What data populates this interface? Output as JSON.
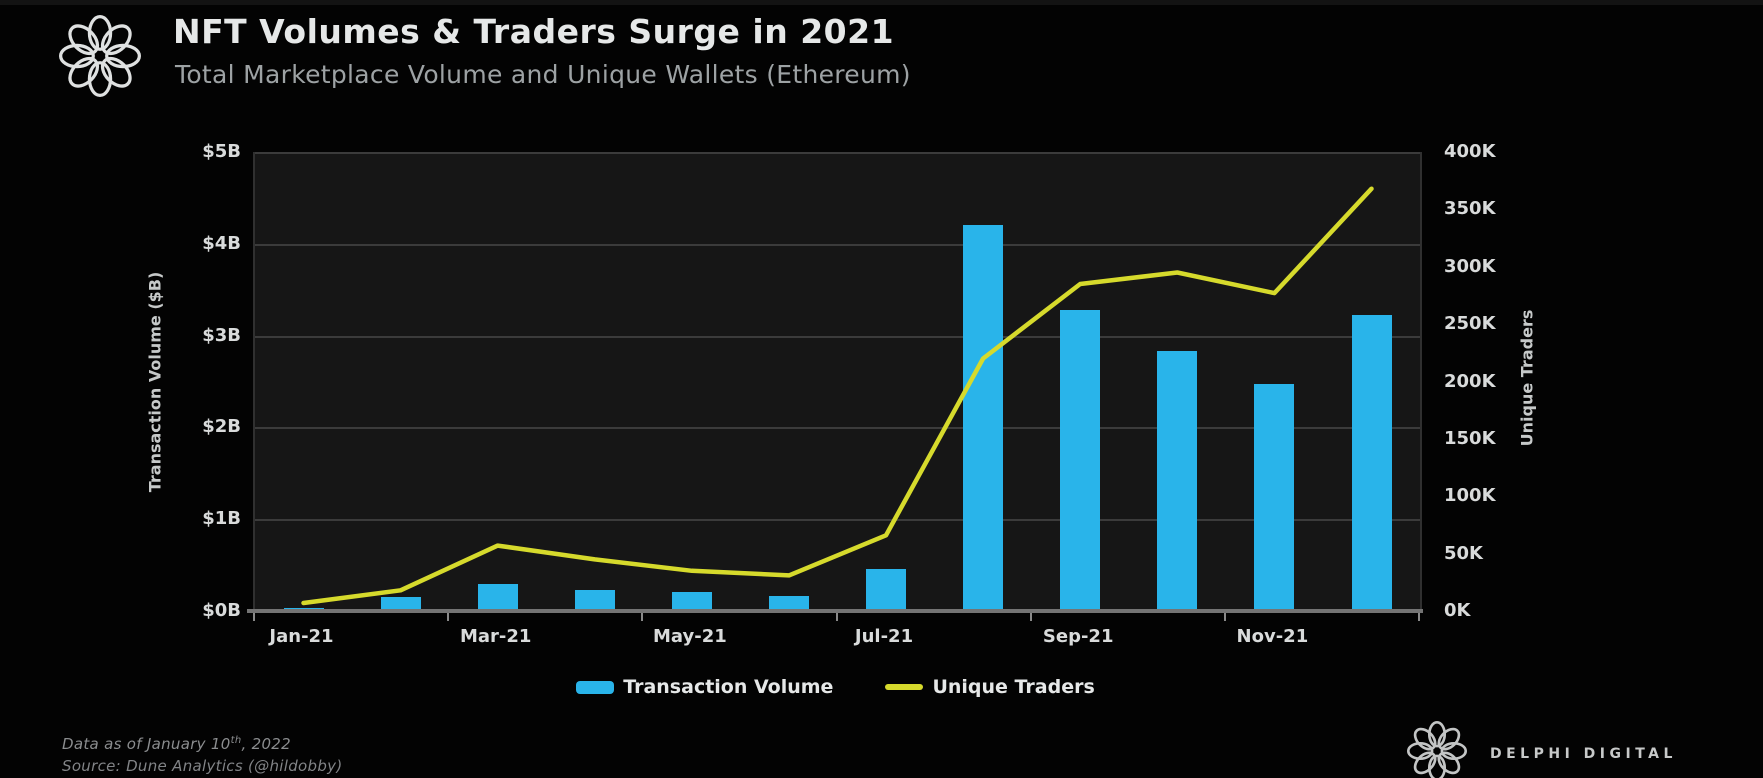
{
  "header": {
    "title": "NFT Volumes & Traders Surge in 2021",
    "subtitle": "Total Marketplace Volume and Unique Wallets (Ethereum)"
  },
  "legend": [
    {
      "label": "Transaction Volume",
      "swatch": "bar",
      "color": "#29b4ea"
    },
    {
      "label": "Unique Traders",
      "swatch": "line",
      "color": "#d6da2c"
    }
  ],
  "footer": {
    "line1_prefix": "Data as of January 10",
    "line1_sup": "th",
    "line1_suffix": ", 2022",
    "line2": "Source: Dune Analytics (@hildobby)"
  },
  "branding": {
    "name": "DELPHI DIGITAL"
  },
  "chart_data": {
    "type": "bar+line",
    "title": "NFT Volumes & Traders Surge in 2021",
    "subtitle": "Total Marketplace Volume and Unique Wallets (Ethereum)",
    "categories": [
      "Jan-21",
      "Feb-21",
      "Mar-21",
      "Apr-21",
      "May-21",
      "Jun-21",
      "Jul-21",
      "Aug-21",
      "Sep-21",
      "Oct-21",
      "Nov-21",
      "Dec-21"
    ],
    "x_axis": {
      "visible_tick_labels": [
        "Jan-21",
        "Mar-21",
        "May-21",
        "Jul-21",
        "Sep-21",
        "Nov-21"
      ],
      "label_every_n_months": 2
    },
    "left_axis": {
      "title": "Transaction Volume ($B)",
      "tick_labels": [
        "$5B",
        "$4B",
        "$3B",
        "$2B",
        "$1B",
        "$0B"
      ],
      "min": 0,
      "max": 5,
      "unit": "$B"
    },
    "right_axis": {
      "title": "Unique Traders",
      "tick_labels": [
        "400K",
        "350K",
        "300K",
        "250K",
        "200K",
        "150K",
        "100K",
        "50K",
        "0K"
      ],
      "min": 0,
      "max": 400,
      "unit": "K"
    },
    "series": [
      {
        "name": "Transaction Volume",
        "type": "bar",
        "axis": "left",
        "unit": "$B",
        "color": "#29b4ea",
        "values": [
          0.03,
          0.15,
          0.3,
          0.23,
          0.21,
          0.16,
          0.46,
          4.2,
          3.28,
          2.83,
          2.47,
          3.22
        ]
      },
      {
        "name": "Unique Traders",
        "type": "line",
        "axis": "right",
        "unit": "K wallets",
        "color": "#d6da2c",
        "values": [
          7,
          18,
          57,
          45,
          35,
          31,
          66,
          220,
          285,
          295,
          277,
          368
        ]
      }
    ],
    "grid": "horizontal",
    "legend_position": "bottom-center",
    "plot_background": "#161616",
    "page_background": "#030303"
  }
}
